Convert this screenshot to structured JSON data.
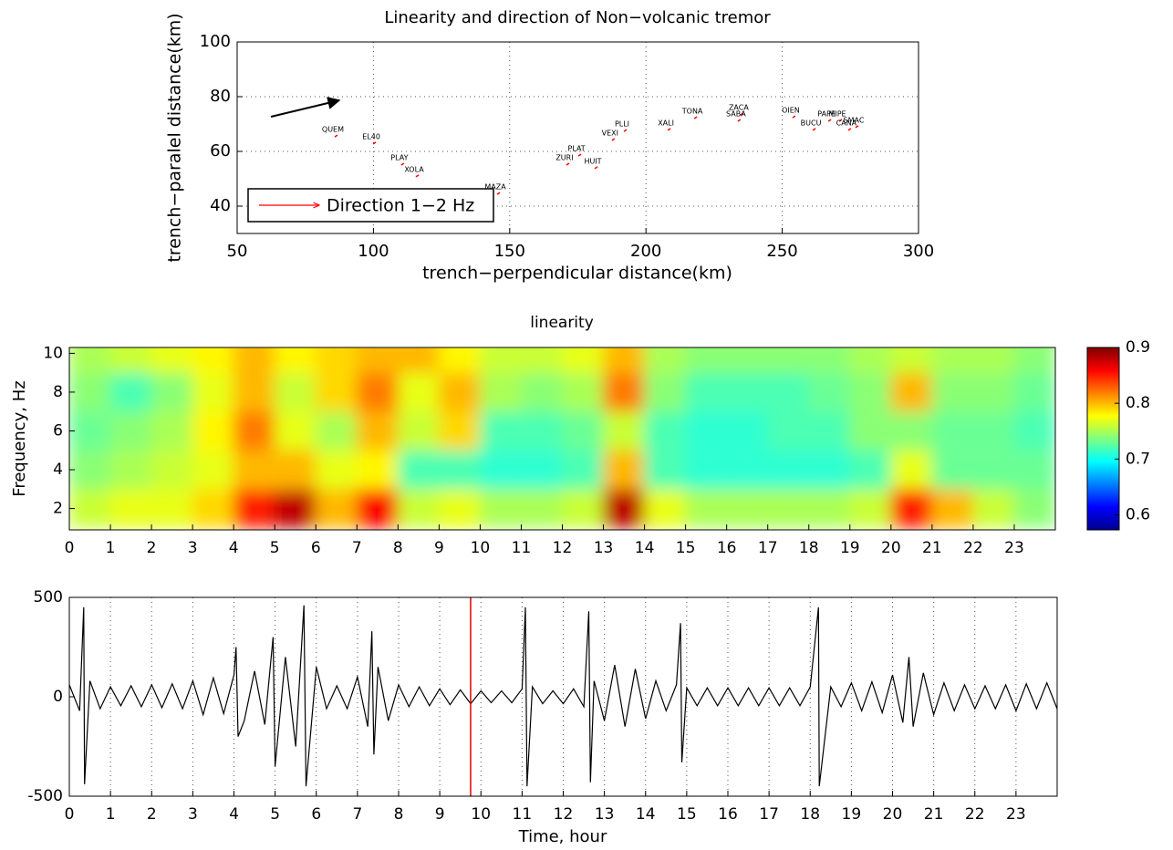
{
  "chart_data": [
    {
      "type": "scatter",
      "title": "Linearity and direction of Non−volcanic tremor",
      "x_label": "trench−perpendicular distance(km)",
      "y_label": "trench−paralel distance(km)",
      "labels": [
        "QUEM",
        "EL40",
        "PLAY",
        "XOLA",
        "MAZA",
        "ZURI",
        "PLAT",
        "HUIT",
        "VEXI",
        "PLLI",
        "XALI",
        "TONA",
        "ZACA",
        "SABA",
        "OIEN",
        "BUCU",
        "PAPE",
        "MIPE",
        "SMAC",
        "CANA"
      ],
      "x": [
        85.8,
        99.9,
        110.2,
        115.6,
        145.4,
        170.8,
        175.2,
        181.2,
        187.5,
        191.9,
        208,
        217.7,
        234.7,
        233.7,
        253.8,
        261.2,
        266.9,
        270.9,
        276.9,
        274.2
      ],
      "y": [
        65.3,
        62.7,
        55,
        50.7,
        44.3,
        55,
        58.3,
        53.7,
        64,
        67.3,
        67.7,
        72,
        73.3,
        71,
        72.3,
        67.7,
        71,
        71,
        68.7,
        67.7
      ],
      "color": "#ff0000",
      "legend": "Direction 1−2 Hz",
      "legend_corner": "lower left",
      "xlim": [
        50,
        300
      ],
      "ylim": [
        30,
        100
      ],
      "xticks": [
        50,
        100,
        150,
        200,
        250,
        300
      ],
      "yticks": [
        40,
        60,
        80,
        100
      ],
      "grid": true
    },
    {
      "type": "heatmap",
      "title": "linearity",
      "y_label": "Frequency, Hz",
      "x": [
        0.5,
        1.5,
        2.5,
        3.5,
        4.5,
        5.5,
        6.5,
        7.5,
        8.5,
        9.5,
        10.5,
        11.5,
        12.5,
        13.5,
        14.5,
        15.5,
        16.5,
        17.5,
        18.5,
        19.5,
        20.5,
        21.5,
        22.5,
        23.5
      ],
      "y": [
        2,
        4,
        6,
        8,
        10
      ],
      "z": [
        [
          0.76,
          0.77,
          0.77,
          0.79,
          0.85,
          0.88,
          0.8,
          0.86,
          0.76,
          0.77,
          0.75,
          0.75,
          0.76,
          0.88,
          0.77,
          0.75,
          0.75,
          0.75,
          0.75,
          0.76,
          0.85,
          0.8,
          0.76,
          0.74
        ],
        [
          0.74,
          0.75,
          0.76,
          0.77,
          0.8,
          0.8,
          0.77,
          0.78,
          0.72,
          0.72,
          0.71,
          0.71,
          0.72,
          0.8,
          0.72,
          0.71,
          0.71,
          0.71,
          0.71,
          0.72,
          0.77,
          0.73,
          0.73,
          0.73
        ],
        [
          0.73,
          0.74,
          0.75,
          0.78,
          0.82,
          0.77,
          0.75,
          0.8,
          0.76,
          0.79,
          0.72,
          0.72,
          0.73,
          0.76,
          0.72,
          0.71,
          0.71,
          0.72,
          0.72,
          0.74,
          0.74,
          0.73,
          0.73,
          0.72
        ],
        [
          0.74,
          0.72,
          0.74,
          0.77,
          0.8,
          0.76,
          0.79,
          0.82,
          0.77,
          0.8,
          0.75,
          0.74,
          0.75,
          0.82,
          0.74,
          0.72,
          0.72,
          0.72,
          0.73,
          0.74,
          0.8,
          0.74,
          0.74,
          0.73
        ],
        [
          0.75,
          0.76,
          0.77,
          0.78,
          0.8,
          0.78,
          0.79,
          0.8,
          0.8,
          0.78,
          0.76,
          0.76,
          0.77,
          0.8,
          0.75,
          0.74,
          0.74,
          0.74,
          0.74,
          0.75,
          0.76,
          0.75,
          0.75,
          0.74
        ]
      ],
      "xlim": [
        0,
        24
      ],
      "ylim": [
        0.9,
        10.3
      ],
      "xticks": [
        0,
        1,
        2,
        3,
        4,
        5,
        6,
        7,
        8,
        9,
        10,
        11,
        12,
        13,
        14,
        15,
        16,
        17,
        18,
        19,
        20,
        21,
        22,
        23
      ],
      "yticks": [
        2,
        4,
        6,
        8,
        10
      ],
      "colormap": "jet",
      "clim": [
        0.573,
        0.9
      ],
      "colorbar_ticks": [
        0.6,
        0.7,
        0.8,
        0.9
      ]
    },
    {
      "type": "line",
      "x_label": "Time, hour",
      "x": [
        0,
        0.25,
        0.35,
        0.37,
        0.5,
        0.75,
        1,
        1.25,
        1.5,
        1.75,
        2,
        2.25,
        2.5,
        2.75,
        3,
        3.25,
        3.5,
        3.75,
        4,
        4.05,
        4.1,
        4.25,
        4.5,
        4.75,
        4.95,
        5,
        5.25,
        5.5,
        5.7,
        5.75,
        6,
        6.25,
        6.5,
        6.75,
        7,
        7.25,
        7.35,
        7.4,
        7.5,
        7.75,
        8,
        8.25,
        8.5,
        8.75,
        9,
        9.25,
        9.5,
        9.75,
        10,
        10.25,
        10.5,
        10.75,
        11,
        11.08,
        11.12,
        11.25,
        11.5,
        11.75,
        12,
        12.25,
        12.5,
        12.62,
        12.66,
        12.75,
        13,
        13.25,
        13.5,
        13.75,
        14,
        14.25,
        14.5,
        14.75,
        14.85,
        14.88,
        15,
        15.25,
        15.5,
        15.75,
        16,
        16.25,
        16.5,
        16.75,
        17,
        17.25,
        17.5,
        17.75,
        18,
        18.2,
        18.22,
        18.5,
        18.75,
        19,
        19.25,
        19.5,
        19.75,
        20,
        20.25,
        20.4,
        20.5,
        20.75,
        21,
        21.25,
        21.5,
        21.75,
        22,
        22.25,
        22.5,
        22.75,
        23,
        23.25,
        23.5,
        23.75,
        24
      ],
      "values": [
        60,
        -70,
        450,
        -440,
        80,
        -60,
        50,
        -45,
        55,
        -50,
        60,
        -55,
        65,
        -60,
        80,
        -90,
        95,
        -85,
        110,
        250,
        -200,
        -120,
        130,
        -140,
        300,
        -350,
        200,
        -250,
        460,
        -450,
        150,
        -60,
        55,
        -60,
        100,
        -150,
        330,
        -290,
        150,
        -120,
        60,
        -50,
        50,
        -45,
        40,
        -40,
        35,
        -35,
        30,
        -30,
        30,
        -30,
        40,
        450,
        -450,
        50,
        -35,
        30,
        -35,
        40,
        -50,
        430,
        -430,
        80,
        -120,
        160,
        -150,
        140,
        -110,
        80,
        -70,
        60,
        370,
        -330,
        45,
        -45,
        45,
        -45,
        45,
        -45,
        45,
        -45,
        45,
        -45,
        45,
        -45,
        50,
        450,
        -450,
        50,
        -50,
        70,
        -70,
        75,
        -80,
        110,
        -130,
        200,
        -150,
        120,
        -90,
        70,
        -70,
        60,
        -60,
        55,
        -60,
        60,
        -70,
        65,
        -60,
        70,
        -60
      ],
      "color": "#000000",
      "vline_x": 9.75,
      "vline_color": "#e00000",
      "xlim": [
        0,
        24
      ],
      "ylim": [
        -500,
        500
      ],
      "xticks": [
        0,
        1,
        2,
        3,
        4,
        5,
        6,
        7,
        8,
        9,
        10,
        11,
        12,
        13,
        14,
        15,
        16,
        17,
        18,
        19,
        20,
        21,
        22,
        23
      ],
      "yticks": [
        -500,
        0,
        500
      ],
      "grid": true
    }
  ]
}
